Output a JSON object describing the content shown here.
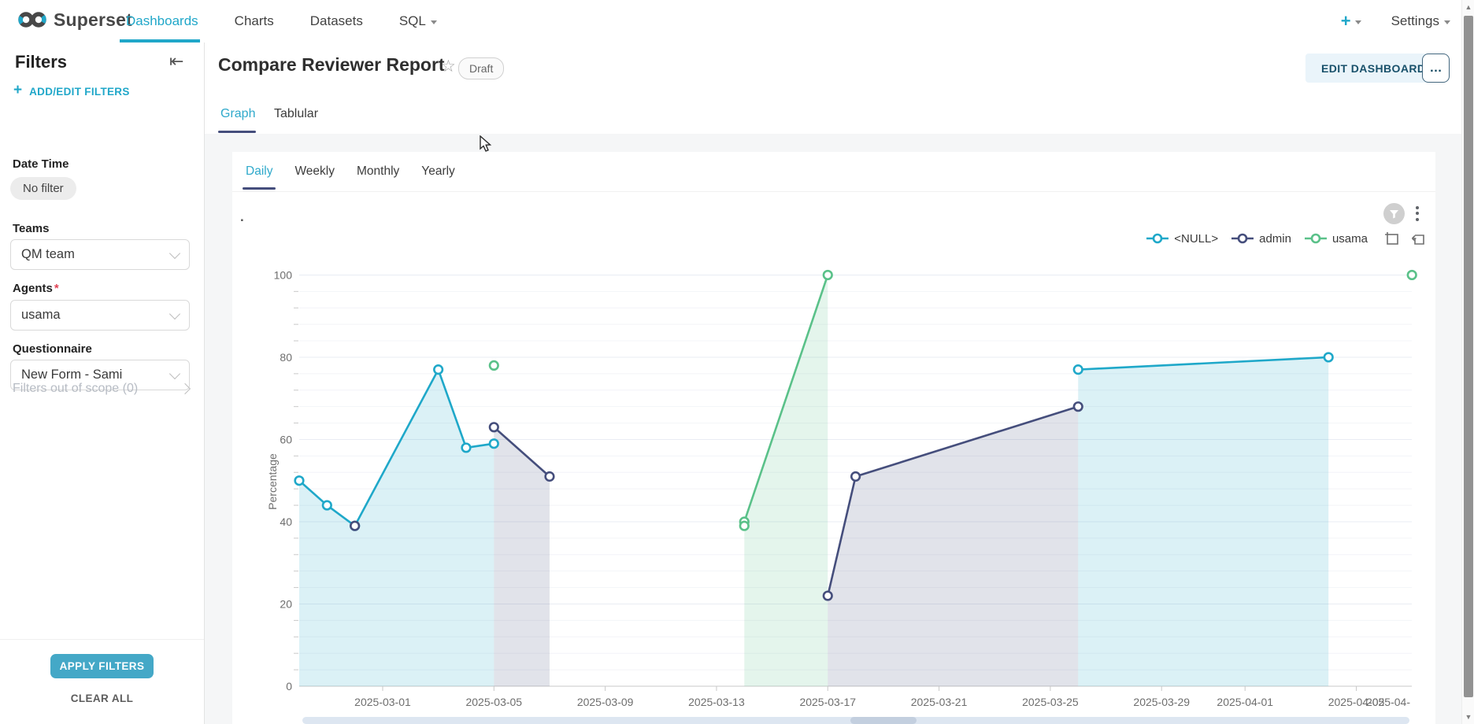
{
  "navbar": {
    "brand": "Superset",
    "items": [
      {
        "label": "Dashboards",
        "active": true
      },
      {
        "label": "Charts",
        "active": false
      },
      {
        "label": "Datasets",
        "active": false
      },
      {
        "label": "SQL",
        "active": false,
        "caret": true
      }
    ],
    "plus_label": "+",
    "settings_label": "Settings"
  },
  "filters_panel": {
    "title": "Filters",
    "add_edit_label": "ADD/EDIT FILTERS",
    "sections": [
      {
        "label": "Date Time",
        "type": "pill",
        "value": "No filter",
        "required": false
      },
      {
        "label": "Teams",
        "type": "select",
        "value": "QM team",
        "required": false
      },
      {
        "label": "Agents",
        "type": "select",
        "value": "usama",
        "required": true
      },
      {
        "label": "Questionnaire",
        "type": "select",
        "value": "New Form - Sami",
        "required": false
      }
    ],
    "out_of_scope_label": "Filters out of scope (0)",
    "apply_label": "APPLY FILTERS",
    "clear_label": "CLEAR ALL"
  },
  "header": {
    "title": "Compare Reviewer Report",
    "badge": "Draft",
    "edit_button": "EDIT DASHBOARD",
    "more_button": "..."
  },
  "tabs": [
    {
      "label": "Graph",
      "active": true
    },
    {
      "label": "Tablular",
      "active": false
    }
  ],
  "subtabs": [
    {
      "label": "Daily",
      "active": true
    },
    {
      "label": "Weekly",
      "active": false
    },
    {
      "label": "Monthly",
      "active": false
    },
    {
      "label": "Yearly",
      "active": false
    }
  ],
  "chart_data": {
    "type": "line",
    "title": ".",
    "xlabel": "",
    "ylabel": "Percentage",
    "ylim": [
      0,
      100
    ],
    "y_ticks": [
      0,
      20,
      40,
      60,
      80,
      100
    ],
    "y_minor_step": 4,
    "grid": true,
    "legend_position": "top-right",
    "x_axis_start_date": "2025-02-26",
    "x_ticks": [
      {
        "label": "2025-03-01",
        "day": 3
      },
      {
        "label": "2025-03-05",
        "day": 7
      },
      {
        "label": "2025-03-09",
        "day": 11
      },
      {
        "label": "2025-03-13",
        "day": 15
      },
      {
        "label": "2025-03-17",
        "day": 19
      },
      {
        "label": "2025-03-21",
        "day": 23
      },
      {
        "label": "2025-03-25",
        "day": 27
      },
      {
        "label": "2025-03-29",
        "day": 31
      },
      {
        "label": "2025-04-01",
        "day": 34
      },
      {
        "label": "2025-04-05",
        "day": 38
      },
      {
        "label": "2025-04-",
        "day": 41,
        "clipped": true
      }
    ],
    "fill_opacity": 0.16,
    "series": [
      {
        "name": "<NULL>",
        "color": "#1FA8C9",
        "segments": [
          [
            {
              "date": "2025-02-26",
              "day": 0,
              "value": 50
            },
            {
              "date": "2025-02-27",
              "day": 1,
              "value": 44
            },
            {
              "date": "2025-02-28",
              "day": 2,
              "value": 39
            },
            {
              "date": "2025-03-03",
              "day": 5,
              "value": 77
            },
            {
              "date": "2025-03-04",
              "day": 6,
              "value": 58
            },
            {
              "date": "2025-03-05",
              "day": 7,
              "value": 59
            }
          ],
          [
            {
              "date": "2025-03-26",
              "day": 28,
              "value": 77
            },
            {
              "date": "2025-04-04",
              "day": 37,
              "value": 80
            }
          ]
        ],
        "isolated_points": []
      },
      {
        "name": "admin",
        "color": "#454E7C",
        "segments": [
          [
            {
              "date": "2025-03-05",
              "day": 7,
              "value": 63
            },
            {
              "date": "2025-03-07",
              "day": 9,
              "value": 51
            }
          ],
          [
            {
              "date": "2025-03-17",
              "day": 19,
              "value": 22
            },
            {
              "date": "2025-03-18",
              "day": 20,
              "value": 51
            },
            {
              "date": "2025-03-26",
              "day": 28,
              "value": 68
            }
          ]
        ],
        "isolated_points": [
          {
            "date": "2025-02-28",
            "day": 2,
            "value": 39
          }
        ]
      },
      {
        "name": "usama",
        "color": "#5AC189",
        "segments": [
          [
            {
              "date": "2025-03-14",
              "day": 16,
              "value": 40
            },
            {
              "date": "2025-03-17",
              "day": 19,
              "value": 100
            }
          ]
        ],
        "isolated_points": [
          {
            "date": "2025-03-05",
            "day": 7,
            "value": 78
          },
          {
            "date": "2025-03-14",
            "day": 16,
            "value": 39
          },
          {
            "date": "2025-04-07",
            "day": 40,
            "value": 100
          }
        ]
      }
    ]
  }
}
